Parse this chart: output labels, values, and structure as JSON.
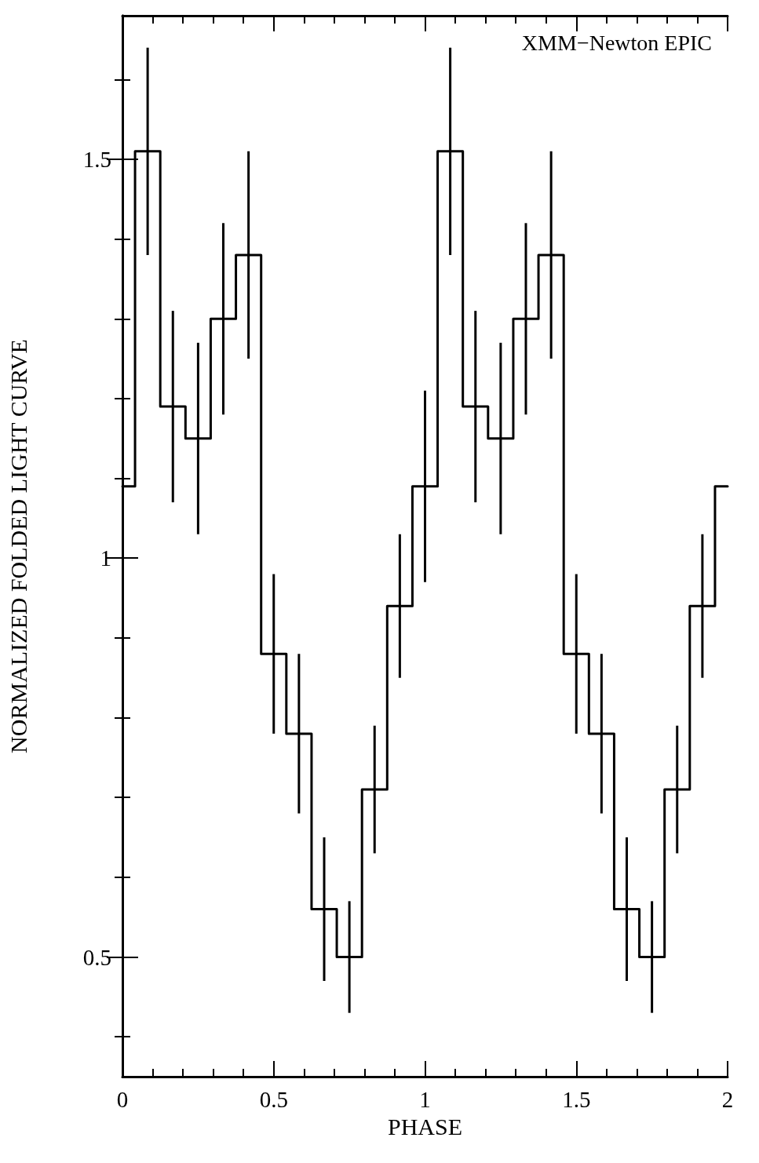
{
  "chart_data": {
    "type": "step",
    "xlabel": "PHASE",
    "ylabel": "NORMALIZED FOLDED LIGHT CURVE",
    "annotations": [
      "XMM−Newton EPIC"
    ],
    "x": [
      0,
      0.0833,
      0.1667,
      0.25,
      0.3333,
      0.4167,
      0.5,
      0.5833,
      0.6667,
      0.75,
      0.8333,
      0.9167,
      1,
      1.0833,
      1.1667,
      1.25,
      1.3333,
      1.4167,
      1.5,
      1.5833,
      1.6667,
      1.75,
      1.8333,
      1.9167,
      2
    ],
    "series": [
      {
        "color": "#000000",
        "values": [
          1.09,
          1.51,
          1.19,
          1.15,
          1.3,
          1.38,
          0.88,
          0.78,
          0.56,
          0.5,
          0.71,
          0.94,
          1.09,
          1.51,
          1.19,
          1.15,
          1.3,
          1.38,
          0.88,
          0.78,
          0.56,
          0.5,
          0.71,
          0.94,
          1.09
        ],
        "errors": [
          null,
          0.13,
          0.12,
          0.12,
          0.12,
          0.13,
          0.1,
          0.1,
          0.09,
          0.07,
          0.08,
          0.09,
          0.12,
          0.13,
          0.12,
          0.12,
          0.12,
          0.13,
          0.1,
          0.1,
          0.09,
          0.07,
          0.08,
          0.09,
          null
        ]
      }
    ],
    "xlim": [
      0,
      2
    ],
    "xticks": [
      0,
      {
        "value": 0.1,
        "label": null
      },
      {
        "value": 0.2,
        "label": null
      },
      {
        "value": 0.3,
        "label": null
      },
      {
        "value": 0.4,
        "label": null
      },
      0.5,
      {
        "value": 0.6,
        "label": null
      },
      {
        "value": 0.7,
        "label": null
      },
      {
        "value": 0.8,
        "label": null
      },
      {
        "value": 0.9,
        "label": null
      },
      1,
      {
        "value": 1.1,
        "label": null
      },
      {
        "value": 1.2,
        "label": null
      },
      {
        "value": 1.3,
        "label": null
      },
      {
        "value": 1.4,
        "label": null
      },
      1.5,
      {
        "value": 1.6,
        "label": null
      },
      {
        "value": 1.7,
        "label": null
      },
      {
        "value": 1.8,
        "label": null
      },
      {
        "value": 1.9,
        "label": null
      },
      2
    ],
    "ylim": [
      0.35,
      1.68
    ],
    "yticks": [
      {
        "value": 0.4,
        "label": null
      },
      0.5,
      {
        "value": 0.6,
        "label": null
      },
      {
        "value": 0.7,
        "label": null
      },
      {
        "value": 0.8,
        "label": null
      },
      {
        "value": 0.9,
        "label": null
      },
      1,
      {
        "value": 1.1,
        "label": null
      },
      {
        "value": 1.2,
        "label": null
      },
      {
        "value": 1.3,
        "label": null
      },
      {
        "value": 1.4,
        "label": null
      },
      1.5,
      {
        "value": 1.6,
        "label": null
      }
    ],
    "grid": false,
    "marker": "none",
    "line_style": "solid"
  }
}
